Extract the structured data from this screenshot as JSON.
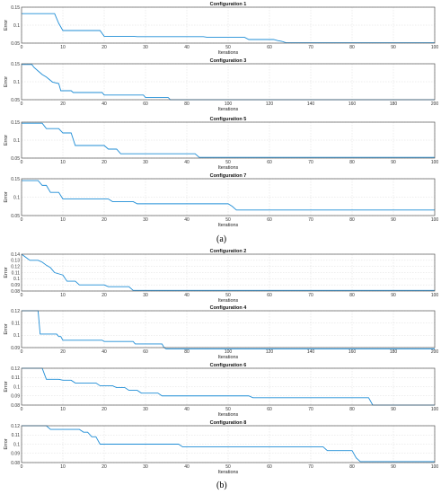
{
  "figure": {
    "caption_a": "(a)",
    "caption_b": "(b)"
  },
  "colors": {
    "line": "#1f8dd6"
  },
  "chart_data": [
    {
      "type": "line",
      "title": "Configuration 1",
      "xlabel": "Iterations",
      "ylabel": "Error",
      "xlim": [
        0,
        100
      ],
      "ylim": [
        0.05,
        0.15
      ],
      "xticks": [
        0,
        10,
        20,
        30,
        40,
        50,
        60,
        70,
        80,
        90,
        100
      ],
      "yticks": [
        0.05,
        0.1,
        0.15
      ],
      "grid": true,
      "series": [
        {
          "x": [
            0,
            8,
            9,
            10,
            19,
            20,
            27,
            28,
            44,
            45,
            54,
            55,
            61,
            62,
            63,
            64,
            100
          ],
          "y": [
            0.132,
            0.132,
            0.105,
            0.085,
            0.085,
            0.069,
            0.069,
            0.068,
            0.068,
            0.066,
            0.066,
            0.06,
            0.06,
            0.057,
            0.055,
            0.051,
            0.051
          ]
        }
      ]
    },
    {
      "type": "line",
      "title": "Configuration 3",
      "xlabel": "Iterations",
      "ylabel": "Error",
      "xlim": [
        0,
        200
      ],
      "ylim": [
        0.05,
        0.15
      ],
      "xticks": [
        0,
        20,
        40,
        60,
        80,
        100,
        120,
        140,
        160,
        180,
        200
      ],
      "yticks": [
        0.05,
        0.1,
        0.15
      ],
      "grid": true,
      "series": [
        {
          "x": [
            0,
            5,
            6,
            8,
            10,
            12,
            15,
            18,
            19,
            24,
            25,
            39,
            40,
            59,
            60,
            71,
            72,
            200
          ],
          "y": [
            0.148,
            0.148,
            0.14,
            0.13,
            0.12,
            0.113,
            0.099,
            0.095,
            0.075,
            0.075,
            0.07,
            0.07,
            0.063,
            0.063,
            0.056,
            0.056,
            0.05,
            0.05
          ]
        }
      ]
    },
    {
      "type": "line",
      "title": "Configuration 5",
      "xlabel": "Iterations",
      "ylabel": "Error",
      "xlim": [
        0,
        100
      ],
      "ylim": [
        0.05,
        0.15
      ],
      "xticks": [
        0,
        10,
        20,
        30,
        40,
        50,
        60,
        70,
        80,
        90,
        100
      ],
      "yticks": [
        0.05,
        0.1,
        0.15
      ],
      "grid": true,
      "series": [
        {
          "x": [
            0,
            5,
            6,
            9,
            10,
            12,
            13,
            20,
            21,
            23,
            24,
            42,
            43,
            100
          ],
          "y": [
            0.147,
            0.147,
            0.132,
            0.132,
            0.12,
            0.12,
            0.085,
            0.085,
            0.075,
            0.075,
            0.062,
            0.062,
            0.052,
            0.052
          ]
        }
      ]
    },
    {
      "type": "line",
      "title": "Configuration 7",
      "xlabel": "Iterations",
      "ylabel": "Error",
      "xlim": [
        0,
        100
      ],
      "ylim": [
        0.05,
        0.15
      ],
      "xticks": [
        0,
        10,
        20,
        30,
        40,
        50,
        60,
        70,
        80,
        90,
        100
      ],
      "yticks": [
        0.05,
        0.1,
        0.15
      ],
      "grid": true,
      "series": [
        {
          "x": [
            0,
            4,
            5,
            6,
            7,
            9,
            10,
            21,
            22,
            27,
            28,
            50,
            51,
            52,
            100
          ],
          "y": [
            0.145,
            0.145,
            0.132,
            0.132,
            0.113,
            0.113,
            0.095,
            0.095,
            0.088,
            0.088,
            0.082,
            0.082,
            0.075,
            0.065,
            0.065
          ]
        }
      ]
    },
    {
      "type": "line",
      "title": "Configuration 2",
      "xlabel": "Iterations",
      "ylabel": "Error",
      "xlim": [
        0,
        100
      ],
      "ylim": [
        0.08,
        0.14
      ],
      "xticks": [
        0,
        10,
        20,
        30,
        40,
        50,
        60,
        70,
        80,
        90,
        100
      ],
      "yticks": [
        0.08,
        0.09,
        0.1,
        0.11,
        0.12,
        0.13,
        0.14
      ],
      "grid": true,
      "series": [
        {
          "x": [
            0,
            1,
            2,
            4,
            5,
            6,
            7,
            8,
            9,
            10,
            11,
            13,
            14,
            20,
            21,
            26,
            27,
            100
          ],
          "y": [
            0.14,
            0.135,
            0.13,
            0.13,
            0.127,
            0.122,
            0.118,
            0.11,
            0.108,
            0.106,
            0.096,
            0.096,
            0.09,
            0.09,
            0.087,
            0.087,
            0.081,
            0.081
          ]
        }
      ]
    },
    {
      "type": "line",
      "title": "Configuration 4",
      "xlabel": "Iterations",
      "ylabel": "Error",
      "xlim": [
        0,
        200
      ],
      "ylim": [
        0.09,
        0.12
      ],
      "xticks": [
        0,
        20,
        40,
        60,
        80,
        100,
        120,
        140,
        160,
        180,
        200
      ],
      "yticks": [
        0.09,
        0.1,
        0.11,
        0.12
      ],
      "grid": true,
      "series": [
        {
          "x": [
            0,
            8,
            9,
            17,
            18,
            19,
            20,
            39,
            40,
            54,
            55,
            68,
            69,
            70,
            200
          ],
          "y": [
            0.12,
            0.12,
            0.101,
            0.101,
            0.099,
            0.099,
            0.096,
            0.096,
            0.095,
            0.095,
            0.093,
            0.093,
            0.09,
            0.089,
            0.089
          ]
        }
      ]
    },
    {
      "type": "line",
      "title": "Configuration 6",
      "xlabel": "Iterations",
      "ylabel": "Error",
      "xlim": [
        0,
        100
      ],
      "ylim": [
        0.08,
        0.12
      ],
      "xticks": [
        0,
        10,
        20,
        30,
        40,
        50,
        60,
        70,
        80,
        90,
        100
      ],
      "yticks": [
        0.08,
        0.09,
        0.1,
        0.11,
        0.12
      ],
      "grid": true,
      "series": [
        {
          "x": [
            0,
            5,
            6,
            9,
            10,
            12,
            13,
            18,
            19,
            22,
            23,
            25,
            26,
            28,
            29,
            33,
            34,
            55,
            56,
            84,
            85,
            100
          ],
          "y": [
            0.12,
            0.12,
            0.108,
            0.108,
            0.107,
            0.107,
            0.104,
            0.104,
            0.101,
            0.101,
            0.099,
            0.099,
            0.096,
            0.096,
            0.093,
            0.093,
            0.09,
            0.09,
            0.088,
            0.088,
            0.08,
            0.08
          ]
        }
      ]
    },
    {
      "type": "line",
      "title": "Configuration 8",
      "xlabel": "Iterations",
      "ylabel": "Error",
      "xlim": [
        0,
        100
      ],
      "ylim": [
        0.08,
        0.12
      ],
      "xticks": [
        0,
        10,
        20,
        30,
        40,
        50,
        60,
        70,
        80,
        90,
        100
      ],
      "yticks": [
        0.08,
        0.09,
        0.1,
        0.11,
        0.12
      ],
      "grid": true,
      "series": [
        {
          "x": [
            0,
            6,
            7,
            14,
            15,
            16,
            17,
            18,
            19,
            38,
            39,
            73,
            74,
            80,
            81,
            82,
            100
          ],
          "y": [
            0.12,
            0.12,
            0.116,
            0.116,
            0.113,
            0.113,
            0.108,
            0.108,
            0.1,
            0.1,
            0.097,
            0.097,
            0.093,
            0.093,
            0.085,
            0.081,
            0.081
          ]
        }
      ]
    }
  ]
}
